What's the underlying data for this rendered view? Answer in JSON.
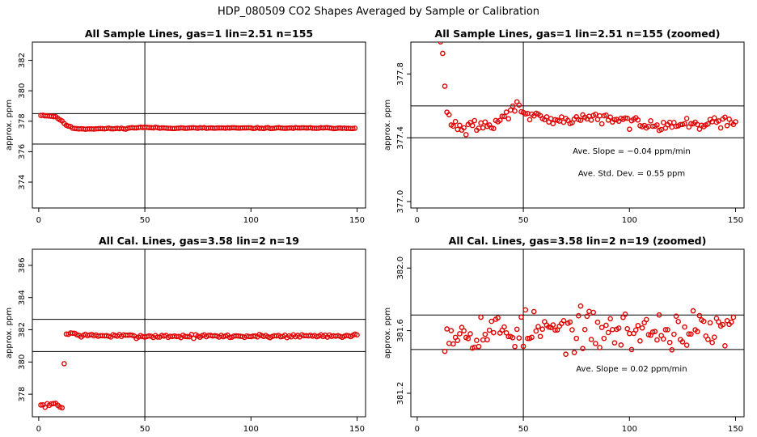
{
  "page_title": "HDP_080509  CO2 Shapes Averaged by Sample or Calibration",
  "colors": {
    "points": "#e00000",
    "axes": "#000000",
    "background": "#ffffff"
  },
  "chart_data": [
    {
      "id": "p1",
      "type": "scatter",
      "title": "All Sample Lines, gas=1 lin=2.51 n=155",
      "xlabel": "",
      "ylabel": "approx. ppm",
      "xlim": [
        -3,
        154
      ],
      "ylim": [
        372.3,
        383.2
      ],
      "xticks": [
        0,
        50,
        100,
        150
      ],
      "yticks": [
        374,
        376,
        378,
        380,
        382
      ],
      "hlines": [
        376.5,
        378.5
      ],
      "vline": 50,
      "series": [
        {
          "name": "sample",
          "profile": [
            [
              1,
              378.4
            ],
            [
              5,
              378.35
            ],
            [
              8,
              378.3
            ],
            [
              10,
              378.1
            ],
            [
              13,
              377.75
            ],
            [
              16,
              377.55
            ],
            [
              20,
              377.5
            ],
            [
              40,
              377.52
            ],
            [
              48,
              377.6
            ],
            [
              60,
              377.55
            ],
            [
              100,
              377.55
            ],
            [
              150,
              377.55
            ]
          ],
          "noise": 0.025,
          "n": 149,
          "x0": 1,
          "seed": 11
        }
      ],
      "annotations": []
    },
    {
      "id": "p2",
      "type": "scatter",
      "title": "All Sample Lines, gas=1 lin=2.51 n=155 (zoomed)",
      "xlabel": "",
      "ylabel": "approx. ppm",
      "xlim": [
        -3,
        154
      ],
      "ylim": [
        376.96,
        378.0
      ],
      "xticks": [
        0,
        50,
        100,
        150
      ],
      "yticks": [
        377.0,
        377.4,
        377.8
      ],
      "hlines": [
        377.4,
        377.6
      ],
      "vline": 50,
      "series": [
        {
          "name": "sample",
          "profile": [
            [
              11,
              377.99
            ],
            [
              12,
              377.92
            ],
            [
              13,
              377.73
            ],
            [
              14,
              377.55
            ],
            [
              16,
              377.5
            ],
            [
              22,
              377.45
            ],
            [
              28,
              377.48
            ],
            [
              35,
              377.47
            ],
            [
              40,
              377.52
            ],
            [
              45,
              377.57
            ],
            [
              47,
              377.62
            ],
            [
              50,
              377.58
            ],
            [
              55,
              377.52
            ],
            [
              65,
              377.5
            ],
            [
              80,
              377.53
            ],
            [
              100,
              377.5
            ],
            [
              120,
              377.48
            ],
            [
              150,
              377.5
            ]
          ],
          "noise": 0.025,
          "n": 140,
          "x0": 11,
          "seed": 29
        }
      ],
      "annotations": [
        {
          "text": "Ave. Slope =  −0.04  ppm/min",
          "x": 101,
          "y": 377.3
        },
        {
          "text": "Ave. Std. Dev. =  0.55  ppm",
          "x": 101,
          "y": 377.16
        }
      ]
    },
    {
      "id": "p3",
      "type": "scatter",
      "title": "All Cal. Lines, gas=3.58 lin=2 n=19",
      "xlabel": "",
      "ylabel": "approx. ppm",
      "xlim": [
        -3,
        154
      ],
      "ylim": [
        376.6,
        387.0
      ],
      "xticks": [
        0,
        50,
        100,
        150
      ],
      "yticks": [
        378,
        380,
        382,
        384,
        386
      ],
      "hlines": [
        380.65,
        382.65
      ],
      "vline": 50,
      "series": [
        {
          "name": "cal",
          "profile": [
            [
              1,
              377.3
            ],
            [
              5,
              377.3
            ],
            [
              8,
              377.45
            ],
            [
              10,
              377.2
            ],
            [
              11,
              377.25
            ],
            [
              12,
              379.9
            ],
            [
              13,
              381.7
            ],
            [
              15,
              381.8
            ],
            [
              20,
              381.65
            ],
            [
              50,
              381.6
            ],
            [
              100,
              381.6
            ],
            [
              150,
              381.65
            ]
          ],
          "noise": 0.08,
          "n": 150,
          "x0": 1,
          "seed": 7
        }
      ],
      "annotations": []
    },
    {
      "id": "p4",
      "type": "scatter",
      "title": "All Cal. Lines, gas=3.58 lin=2 n=19 (zoomed)",
      "xlabel": "",
      "ylabel": "approx. ppm",
      "xlim": [
        -3,
        154
      ],
      "ylim": [
        381.05,
        382.12
      ],
      "xticks": [
        0,
        50,
        100,
        150
      ],
      "yticks": [
        381.2,
        381.6,
        382.0
      ],
      "hlines": [
        381.48,
        381.7
      ],
      "vline": 50,
      "series": [
        {
          "name": "cal",
          "profile": [
            [
              13,
              381.6
            ],
            [
              50,
              381.6
            ],
            [
              150,
              381.6
            ]
          ],
          "noise": 0.09,
          "n": 137,
          "x0": 13,
          "seed": 53
        }
      ],
      "annotations": [
        {
          "text": "Ave. Slope =  0.02  ppm/min",
          "x": 101,
          "y": 381.34
        }
      ]
    }
  ]
}
